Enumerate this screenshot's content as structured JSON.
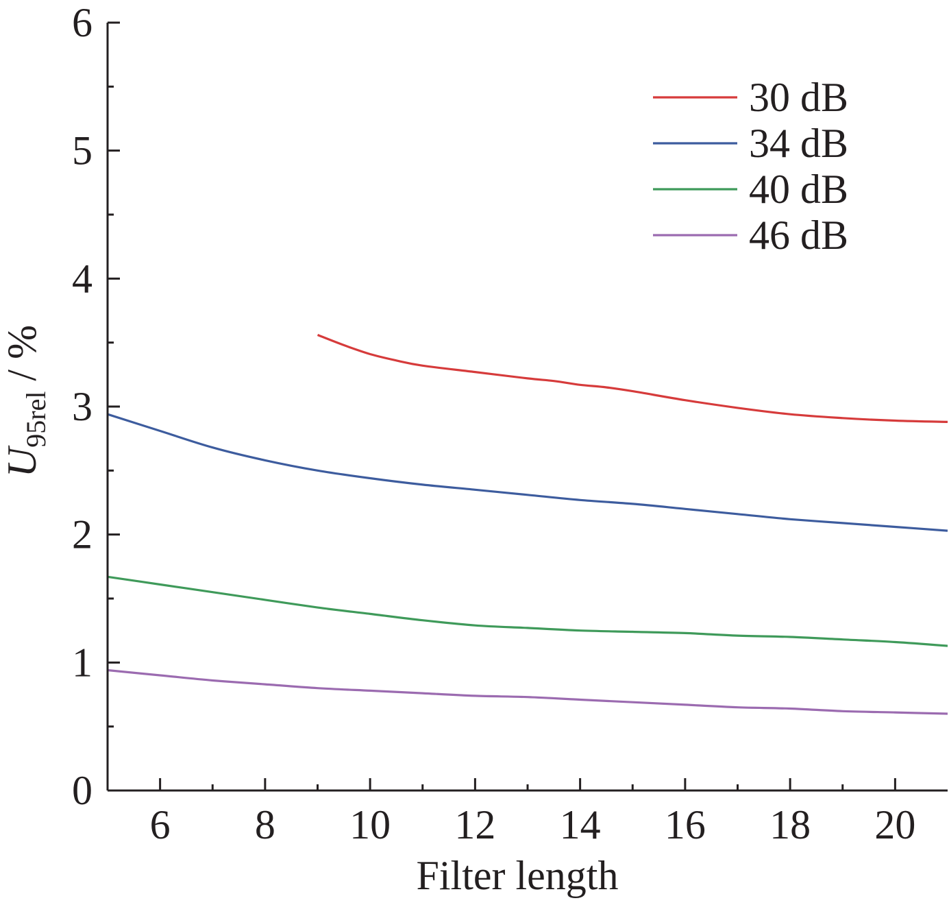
{
  "chart_data": {
    "type": "line",
    "title": "",
    "xlabel": "Filter length",
    "ylabel": {
      "main": "U",
      "subscript": "95rel",
      "suffix": " / %"
    },
    "xlim": [
      5,
      21
    ],
    "ylim": [
      0,
      6
    ],
    "xticks": [
      6,
      8,
      10,
      12,
      14,
      16,
      18,
      20
    ],
    "yticks": [
      0,
      1,
      2,
      3,
      4,
      5,
      6
    ],
    "grid": false,
    "legend_position": "top-right",
    "series": [
      {
        "name": "30 dB",
        "color": "#d63b3b",
        "x": [
          9,
          9.5,
          10,
          10.5,
          11,
          12,
          13,
          13.5,
          14,
          14.5,
          15,
          16,
          17,
          18,
          19,
          20,
          21
        ],
        "y": [
          3.56,
          3.48,
          3.41,
          3.36,
          3.32,
          3.27,
          3.22,
          3.2,
          3.17,
          3.15,
          3.12,
          3.05,
          2.99,
          2.94,
          2.91,
          2.89,
          2.88
        ]
      },
      {
        "name": "34 dB",
        "color": "#3d5c9e",
        "x": [
          5,
          6,
          7,
          8,
          9,
          10,
          11,
          12,
          13,
          14,
          15,
          16,
          17,
          18,
          19,
          20,
          21
        ],
        "y": [
          2.94,
          2.81,
          2.68,
          2.58,
          2.5,
          2.44,
          2.39,
          2.35,
          2.31,
          2.27,
          2.24,
          2.2,
          2.16,
          2.12,
          2.09,
          2.06,
          2.03
        ]
      },
      {
        "name": "40 dB",
        "color": "#3f9a5a",
        "x": [
          5,
          6,
          7,
          8,
          9,
          10,
          11,
          12,
          13,
          14,
          15,
          16,
          17,
          18,
          19,
          20,
          21
        ],
        "y": [
          1.67,
          1.61,
          1.55,
          1.49,
          1.43,
          1.38,
          1.33,
          1.29,
          1.27,
          1.25,
          1.24,
          1.23,
          1.21,
          1.2,
          1.18,
          1.16,
          1.13
        ]
      },
      {
        "name": "46 dB",
        "color": "#9b6bb0",
        "x": [
          5,
          6,
          7,
          8,
          9,
          10,
          11,
          12,
          13,
          14,
          15,
          16,
          17,
          18,
          19,
          20,
          21
        ],
        "y": [
          0.94,
          0.9,
          0.86,
          0.83,
          0.8,
          0.78,
          0.76,
          0.74,
          0.73,
          0.71,
          0.69,
          0.67,
          0.65,
          0.64,
          0.62,
          0.61,
          0.6
        ]
      }
    ]
  }
}
